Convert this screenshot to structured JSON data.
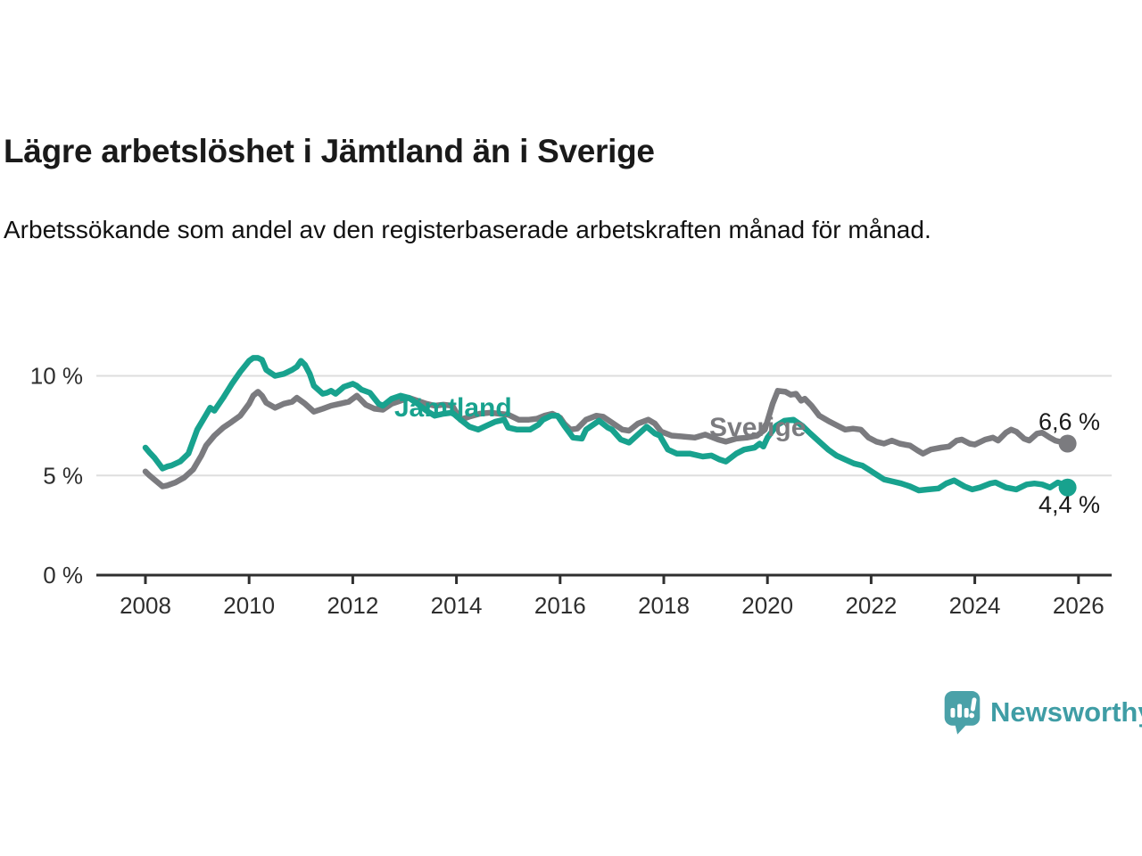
{
  "header": {
    "title": "Lägre arbetslöshet i Jämtland än i Sverige",
    "subtitle": "Arbetssökande som andel av den registerbaserade arbetskraften månad för månad."
  },
  "branding": {
    "logo_icon": "newsworthy-speech-bubble-bar-chart-icon",
    "wordmark": "Newsworthy",
    "logo_color": "#4aa1a8",
    "wordmark_color": "#3f9da5"
  },
  "chart_data": {
    "type": "line",
    "title": "Lägre arbetslöshet i Jämtland än i Sverige",
    "subtitle": "Arbetssökande som andel av den registerbaserade arbetskraften månad för månad.",
    "xlabel": "",
    "ylabel": "",
    "unit": "%",
    "xlim": [
      2007.9,
      2026.4
    ],
    "ylim": [
      0,
      11.7
    ],
    "grid": "horizontal",
    "legend_position": "inline-labels-on-lines",
    "axis_color": "#2f2f2f",
    "gridline_color": "#dedede",
    "y_ticks": [
      {
        "value": 0,
        "label": "0 %"
      },
      {
        "value": 5,
        "label": "5 %"
      },
      {
        "value": 10,
        "label": "10 %"
      }
    ],
    "x_ticks": [
      {
        "value": 2008,
        "label": "2008"
      },
      {
        "value": 2010,
        "label": "2010"
      },
      {
        "value": 2012,
        "label": "2012"
      },
      {
        "value": 2014,
        "label": "2014"
      },
      {
        "value": 2016,
        "label": "2016"
      },
      {
        "value": 2018,
        "label": "2018"
      },
      {
        "value": 2020,
        "label": "2020"
      },
      {
        "value": 2022,
        "label": "2022"
      },
      {
        "value": 2024,
        "label": "2024"
      },
      {
        "value": 2026,
        "label": "2026"
      }
    ],
    "series": [
      {
        "name": "Sverige",
        "color": "#7b7b7f",
        "end_label": "6,6 %",
        "end_value": 6.6,
        "points": [
          [
            2008.0,
            5.2
          ],
          [
            2008.08,
            5.0
          ],
          [
            2008.17,
            4.8
          ],
          [
            2008.33,
            4.45
          ],
          [
            2008.42,
            4.5
          ],
          [
            2008.58,
            4.65
          ],
          [
            2008.75,
            4.9
          ],
          [
            2008.92,
            5.3
          ],
          [
            2009.08,
            6.0
          ],
          [
            2009.17,
            6.5
          ],
          [
            2009.33,
            7.0
          ],
          [
            2009.5,
            7.4
          ],
          [
            2009.67,
            7.7
          ],
          [
            2009.83,
            8.0
          ],
          [
            2010.0,
            8.6
          ],
          [
            2010.08,
            9.0
          ],
          [
            2010.17,
            9.2
          ],
          [
            2010.25,
            9.0
          ],
          [
            2010.33,
            8.65
          ],
          [
            2010.5,
            8.4
          ],
          [
            2010.67,
            8.6
          ],
          [
            2010.83,
            8.7
          ],
          [
            2010.92,
            8.9
          ],
          [
            2011.08,
            8.6
          ],
          [
            2011.25,
            8.2
          ],
          [
            2011.42,
            8.35
          ],
          [
            2011.58,
            8.5
          ],
          [
            2011.75,
            8.6
          ],
          [
            2011.92,
            8.7
          ],
          [
            2012.08,
            9.0
          ],
          [
            2012.25,
            8.55
          ],
          [
            2012.42,
            8.35
          ],
          [
            2012.58,
            8.3
          ],
          [
            2012.75,
            8.6
          ],
          [
            2012.92,
            8.75
          ],
          [
            2013.08,
            8.9
          ],
          [
            2013.25,
            8.75
          ],
          [
            2013.42,
            8.6
          ],
          [
            2013.58,
            8.5
          ],
          [
            2013.75,
            8.55
          ],
          [
            2013.92,
            8.5
          ],
          [
            2014.08,
            7.8
          ],
          [
            2014.25,
            7.95
          ],
          [
            2014.45,
            8.1
          ],
          [
            2014.65,
            8.15
          ],
          [
            2014.83,
            8.1
          ],
          [
            2015.0,
            8.05
          ],
          [
            2015.2,
            7.8
          ],
          [
            2015.4,
            7.8
          ],
          [
            2015.55,
            7.85
          ],
          [
            2015.7,
            8.0
          ],
          [
            2015.85,
            8.1
          ],
          [
            2016.0,
            7.9
          ],
          [
            2016.08,
            7.6
          ],
          [
            2016.2,
            7.3
          ],
          [
            2016.33,
            7.35
          ],
          [
            2016.5,
            7.8
          ],
          [
            2016.7,
            8.0
          ],
          [
            2016.83,
            7.95
          ],
          [
            2017.0,
            7.65
          ],
          [
            2017.2,
            7.3
          ],
          [
            2017.33,
            7.25
          ],
          [
            2017.5,
            7.6
          ],
          [
            2017.7,
            7.8
          ],
          [
            2017.83,
            7.6
          ],
          [
            2017.95,
            7.2
          ],
          [
            2018.15,
            7.0
          ],
          [
            2018.4,
            6.95
          ],
          [
            2018.6,
            6.9
          ],
          [
            2018.8,
            7.05
          ],
          [
            2019.05,
            6.8
          ],
          [
            2019.2,
            6.7
          ],
          [
            2019.4,
            6.85
          ],
          [
            2019.6,
            6.9
          ],
          [
            2019.8,
            7.0
          ],
          [
            2019.95,
            7.3
          ],
          [
            2020.1,
            8.6
          ],
          [
            2020.2,
            9.25
          ],
          [
            2020.35,
            9.2
          ],
          [
            2020.45,
            9.05
          ],
          [
            2020.55,
            9.1
          ],
          [
            2020.65,
            8.75
          ],
          [
            2020.72,
            8.85
          ],
          [
            2020.85,
            8.5
          ],
          [
            2021.0,
            8.0
          ],
          [
            2021.2,
            7.7
          ],
          [
            2021.35,
            7.5
          ],
          [
            2021.5,
            7.3
          ],
          [
            2021.65,
            7.35
          ],
          [
            2021.8,
            7.3
          ],
          [
            2021.95,
            6.9
          ],
          [
            2022.1,
            6.7
          ],
          [
            2022.25,
            6.6
          ],
          [
            2022.4,
            6.75
          ],
          [
            2022.55,
            6.6
          ],
          [
            2022.75,
            6.5
          ],
          [
            2022.9,
            6.25
          ],
          [
            2023.0,
            6.1
          ],
          [
            2023.15,
            6.3
          ],
          [
            2023.35,
            6.4
          ],
          [
            2023.5,
            6.45
          ],
          [
            2023.65,
            6.75
          ],
          [
            2023.75,
            6.8
          ],
          [
            2023.9,
            6.6
          ],
          [
            2024.0,
            6.55
          ],
          [
            2024.2,
            6.8
          ],
          [
            2024.35,
            6.9
          ],
          [
            2024.45,
            6.75
          ],
          [
            2024.6,
            7.15
          ],
          [
            2024.7,
            7.3
          ],
          [
            2024.8,
            7.2
          ],
          [
            2024.95,
            6.85
          ],
          [
            2025.05,
            6.75
          ],
          [
            2025.2,
            7.1
          ],
          [
            2025.3,
            7.15
          ],
          [
            2025.45,
            6.9
          ],
          [
            2025.55,
            6.75
          ],
          [
            2025.79,
            6.6
          ]
        ]
      },
      {
        "name": "Jämtland",
        "color": "#18a28e",
        "end_label": "4,4 %",
        "end_value": 4.4,
        "points": [
          [
            2008.0,
            6.4
          ],
          [
            2008.08,
            6.15
          ],
          [
            2008.17,
            5.9
          ],
          [
            2008.33,
            5.35
          ],
          [
            2008.42,
            5.45
          ],
          [
            2008.5,
            5.5
          ],
          [
            2008.67,
            5.7
          ],
          [
            2008.83,
            6.1
          ],
          [
            2009.0,
            7.3
          ],
          [
            2009.17,
            8.05
          ],
          [
            2009.25,
            8.4
          ],
          [
            2009.33,
            8.25
          ],
          [
            2009.5,
            8.9
          ],
          [
            2009.67,
            9.6
          ],
          [
            2009.83,
            10.2
          ],
          [
            2010.0,
            10.75
          ],
          [
            2010.08,
            10.9
          ],
          [
            2010.17,
            10.9
          ],
          [
            2010.25,
            10.8
          ],
          [
            2010.33,
            10.3
          ],
          [
            2010.5,
            10.0
          ],
          [
            2010.67,
            10.1
          ],
          [
            2010.83,
            10.3
          ],
          [
            2010.92,
            10.45
          ],
          [
            2011.0,
            10.75
          ],
          [
            2011.08,
            10.55
          ],
          [
            2011.17,
            10.1
          ],
          [
            2011.25,
            9.5
          ],
          [
            2011.42,
            9.1
          ],
          [
            2011.5,
            9.15
          ],
          [
            2011.58,
            9.25
          ],
          [
            2011.67,
            9.1
          ],
          [
            2011.83,
            9.45
          ],
          [
            2012.0,
            9.6
          ],
          [
            2012.08,
            9.5
          ],
          [
            2012.17,
            9.3
          ],
          [
            2012.33,
            9.15
          ],
          [
            2012.5,
            8.6
          ],
          [
            2012.58,
            8.5
          ],
          [
            2012.75,
            8.85
          ],
          [
            2012.92,
            9.0
          ],
          [
            2013.08,
            8.9
          ],
          [
            2013.25,
            8.6
          ],
          [
            2013.42,
            8.25
          ],
          [
            2013.58,
            8.0
          ],
          [
            2013.75,
            8.1
          ],
          [
            2013.92,
            8.15
          ],
          [
            2014.08,
            7.8
          ],
          [
            2014.25,
            7.45
          ],
          [
            2014.42,
            7.3
          ],
          [
            2014.58,
            7.5
          ],
          [
            2014.75,
            7.7
          ],
          [
            2014.92,
            7.8
          ],
          [
            2015.0,
            7.4
          ],
          [
            2015.17,
            7.3
          ],
          [
            2015.42,
            7.3
          ],
          [
            2015.58,
            7.55
          ],
          [
            2015.67,
            7.8
          ],
          [
            2015.83,
            8.0
          ],
          [
            2015.95,
            8.0
          ],
          [
            2016.08,
            7.5
          ],
          [
            2016.25,
            6.9
          ],
          [
            2016.42,
            6.85
          ],
          [
            2016.5,
            7.3
          ],
          [
            2016.67,
            7.6
          ],
          [
            2016.75,
            7.75
          ],
          [
            2016.92,
            7.4
          ],
          [
            2017.0,
            7.3
          ],
          [
            2017.17,
            6.8
          ],
          [
            2017.33,
            6.65
          ],
          [
            2017.5,
            7.05
          ],
          [
            2017.67,
            7.45
          ],
          [
            2017.83,
            7.1
          ],
          [
            2017.92,
            7.0
          ],
          [
            2018.08,
            6.3
          ],
          [
            2018.25,
            6.1
          ],
          [
            2018.5,
            6.1
          ],
          [
            2018.75,
            5.95
          ],
          [
            2018.92,
            6.0
          ],
          [
            2019.08,
            5.8
          ],
          [
            2019.2,
            5.7
          ],
          [
            2019.4,
            6.1
          ],
          [
            2019.55,
            6.3
          ],
          [
            2019.75,
            6.4
          ],
          [
            2019.85,
            6.6
          ],
          [
            2019.92,
            6.45
          ],
          [
            2020.0,
            6.9
          ],
          [
            2020.17,
            7.5
          ],
          [
            2020.33,
            7.75
          ],
          [
            2020.5,
            7.8
          ],
          [
            2020.67,
            7.5
          ],
          [
            2020.83,
            7.1
          ],
          [
            2021.0,
            6.7
          ],
          [
            2021.17,
            6.3
          ],
          [
            2021.33,
            6.0
          ],
          [
            2021.5,
            5.8
          ],
          [
            2021.67,
            5.6
          ],
          [
            2021.83,
            5.5
          ],
          [
            2021.95,
            5.3
          ],
          [
            2022.1,
            5.05
          ],
          [
            2022.25,
            4.8
          ],
          [
            2022.42,
            4.7
          ],
          [
            2022.58,
            4.6
          ],
          [
            2022.75,
            4.45
          ],
          [
            2022.92,
            4.25
          ],
          [
            2023.1,
            4.3
          ],
          [
            2023.3,
            4.35
          ],
          [
            2023.45,
            4.6
          ],
          [
            2023.6,
            4.75
          ],
          [
            2023.8,
            4.45
          ],
          [
            2023.95,
            4.3
          ],
          [
            2024.1,
            4.4
          ],
          [
            2024.3,
            4.6
          ],
          [
            2024.4,
            4.65
          ],
          [
            2024.6,
            4.4
          ],
          [
            2024.8,
            4.3
          ],
          [
            2025.0,
            4.55
          ],
          [
            2025.15,
            4.6
          ],
          [
            2025.3,
            4.55
          ],
          [
            2025.45,
            4.4
          ],
          [
            2025.6,
            4.65
          ],
          [
            2025.7,
            4.55
          ],
          [
            2025.79,
            4.4
          ]
        ]
      }
    ]
  }
}
